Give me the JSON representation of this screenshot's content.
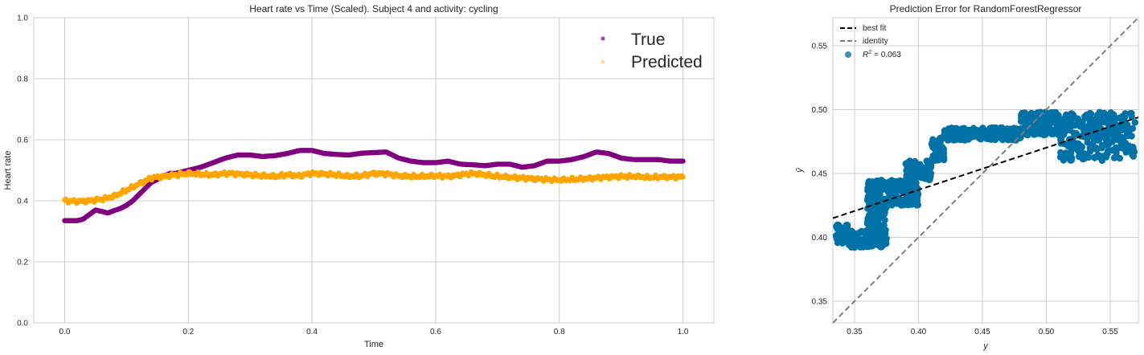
{
  "chart_data": [
    {
      "type": "scatter",
      "title": "Heart rate vs Time (Scaled). Subject 4 and activity: cycling",
      "xlabel": "Time",
      "ylabel": "Heart rate",
      "xlim": [
        -0.05,
        1.05
      ],
      "ylim": [
        0.0,
        1.0
      ],
      "xticks": [
        "0.0",
        "0.2",
        "0.4",
        "0.6",
        "0.8",
        "1.0"
      ],
      "yticks": [
        "0.0",
        "0.2",
        "0.4",
        "0.6",
        "0.8",
        "1.0"
      ],
      "grid": true,
      "legend_position": "top-right",
      "series": [
        {
          "name": "True",
          "color": "#800080",
          "x": [
            0.0,
            0.02,
            0.03,
            0.04,
            0.05,
            0.06,
            0.07,
            0.08,
            0.09,
            0.1,
            0.11,
            0.12,
            0.13,
            0.14,
            0.15,
            0.16,
            0.17,
            0.18,
            0.2,
            0.22,
            0.24,
            0.26,
            0.28,
            0.3,
            0.32,
            0.34,
            0.36,
            0.38,
            0.4,
            0.42,
            0.44,
            0.46,
            0.48,
            0.5,
            0.52,
            0.54,
            0.56,
            0.58,
            0.6,
            0.62,
            0.64,
            0.66,
            0.68,
            0.7,
            0.72,
            0.74,
            0.76,
            0.78,
            0.8,
            0.82,
            0.84,
            0.86,
            0.88,
            0.9,
            0.92,
            0.94,
            0.96,
            0.98,
            1.0
          ],
          "y": [
            0.335,
            0.335,
            0.34,
            0.355,
            0.37,
            0.365,
            0.36,
            0.368,
            0.375,
            0.385,
            0.4,
            0.42,
            0.44,
            0.46,
            0.47,
            0.48,
            0.49,
            0.49,
            0.5,
            0.51,
            0.525,
            0.54,
            0.55,
            0.55,
            0.545,
            0.548,
            0.555,
            0.565,
            0.565,
            0.555,
            0.552,
            0.55,
            0.556,
            0.558,
            0.56,
            0.54,
            0.53,
            0.525,
            0.525,
            0.53,
            0.52,
            0.518,
            0.515,
            0.52,
            0.52,
            0.51,
            0.515,
            0.53,
            0.53,
            0.535,
            0.545,
            0.56,
            0.555,
            0.54,
            0.535,
            0.535,
            0.535,
            0.53,
            0.53
          ]
        },
        {
          "name": "Predicted",
          "color": "#ffa500",
          "x": [
            0.0,
            0.02,
            0.04,
            0.06,
            0.08,
            0.1,
            0.12,
            0.14,
            0.16,
            0.18,
            0.2,
            0.22,
            0.24,
            0.26,
            0.28,
            0.3,
            0.32,
            0.34,
            0.36,
            0.38,
            0.4,
            0.42,
            0.44,
            0.46,
            0.48,
            0.5,
            0.52,
            0.54,
            0.56,
            0.58,
            0.6,
            0.62,
            0.64,
            0.66,
            0.68,
            0.7,
            0.72,
            0.74,
            0.76,
            0.78,
            0.8,
            0.82,
            0.84,
            0.86,
            0.88,
            0.9,
            0.92,
            0.94,
            0.96,
            0.98,
            1.0
          ],
          "y": [
            0.4,
            0.398,
            0.4,
            0.405,
            0.415,
            0.435,
            0.455,
            0.475,
            0.48,
            0.485,
            0.49,
            0.487,
            0.485,
            0.49,
            0.488,
            0.485,
            0.482,
            0.48,
            0.485,
            0.482,
            0.49,
            0.488,
            0.485,
            0.48,
            0.482,
            0.49,
            0.488,
            0.482,
            0.48,
            0.48,
            0.482,
            0.48,
            0.485,
            0.49,
            0.485,
            0.48,
            0.477,
            0.475,
            0.472,
            0.47,
            0.468,
            0.47,
            0.472,
            0.475,
            0.478,
            0.48,
            0.48,
            0.477,
            0.478,
            0.478,
            0.478
          ]
        }
      ]
    },
    {
      "type": "scatter",
      "title": "Prediction Error for RandomForestRegressor",
      "xlabel": "y",
      "ylabel": "ŷ",
      "xlim": [
        0.333,
        0.572
      ],
      "ylim": [
        0.333,
        0.572
      ],
      "xticks": [
        "0.35",
        "0.40",
        "0.45",
        "0.50",
        "0.55"
      ],
      "yticks": [
        "0.35",
        "0.40",
        "0.45",
        "0.50",
        "0.55"
      ],
      "grid": true,
      "legend_position": "top-left",
      "legend": [
        "best fit",
        "identity",
        "R² = 0.063"
      ],
      "r2_label": "$R^2$  = 0.063",
      "best_fit": {
        "x": [
          0.333,
          0.572
        ],
        "y": [
          0.415,
          0.494
        ],
        "color": "#000000"
      },
      "identity": {
        "x": [
          0.333,
          0.572
        ],
        "y": [
          0.333,
          0.572
        ],
        "color": "#808080"
      },
      "points_color": "#0072a8",
      "clusters": [
        {
          "x_range": [
            0.335,
            0.345
          ],
          "y_range": [
            0.395,
            0.41
          ]
        },
        {
          "x_range": [
            0.345,
            0.375
          ],
          "y_range": [
            0.392,
            0.405
          ]
        },
        {
          "x_range": [
            0.36,
            0.375
          ],
          "y_range": [
            0.395,
            0.43
          ]
        },
        {
          "x_range": [
            0.36,
            0.4
          ],
          "y_range": [
            0.425,
            0.445
          ]
        },
        {
          "x_range": [
            0.39,
            0.41
          ],
          "y_range": [
            0.445,
            0.46
          ]
        },
        {
          "x_range": [
            0.41,
            0.42
          ],
          "y_range": [
            0.46,
            0.478
          ]
        },
        {
          "x_range": [
            0.42,
            0.48
          ],
          "y_range": [
            0.476,
            0.486
          ]
        },
        {
          "x_range": [
            0.48,
            0.51
          ],
          "y_range": [
            0.48,
            0.498
          ]
        },
        {
          "x_range": [
            0.51,
            0.57
          ],
          "y_range": [
            0.46,
            0.498
          ]
        }
      ]
    }
  ],
  "legend_left": {
    "true_label": "True",
    "predicted_label": "Predicted"
  },
  "legend_right": {
    "best_fit_label": "best fit",
    "identity_label": "identity",
    "r2_prefix": "R",
    "r2_sup": "2",
    "r2_value": "= 0.063"
  }
}
